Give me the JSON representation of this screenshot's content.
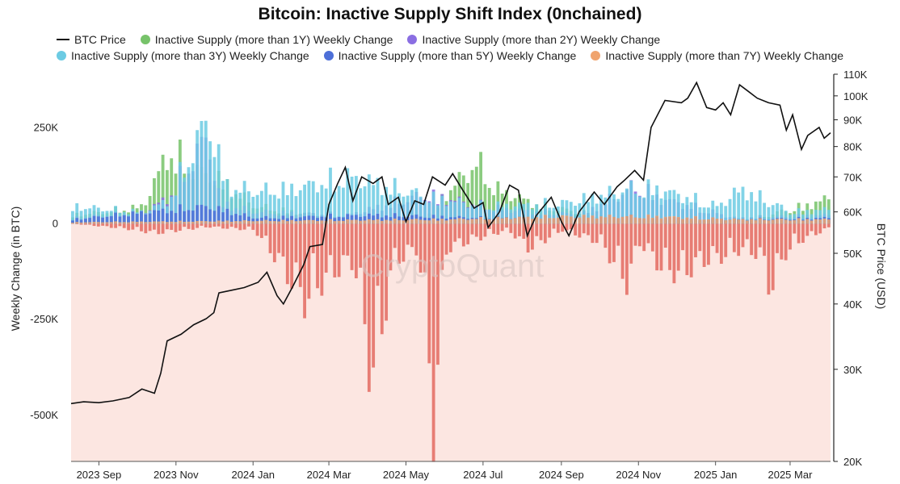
{
  "chart_data": {
    "type": "bar",
    "title": "Bitcoin: Inactive Supply Shift Index (0nchained)",
    "watermark": "CryptoQuant",
    "ylabel_left": "Weekly Change (in BTC)",
    "ylabel_right": "BTC Price (USD)",
    "ylim_left": [
      -620000,
      390000
    ],
    "ylim_right": [
      20000,
      110000
    ],
    "right_axis_scale": "log",
    "y_ticks_left": [
      {
        "value": 250000,
        "label": "250K"
      },
      {
        "value": 0,
        "label": "0"
      },
      {
        "value": -250000,
        "label": "-250K"
      },
      {
        "value": -500000,
        "label": "-500K"
      }
    ],
    "y_ticks_right": [
      {
        "value": 110000,
        "label": "110K"
      },
      {
        "value": 100000,
        "label": "100K"
      },
      {
        "value": 90000,
        "label": "90K"
      },
      {
        "value": 80000,
        "label": "80K"
      },
      {
        "value": 70000,
        "label": "70K"
      },
      {
        "value": 60000,
        "label": "60K"
      },
      {
        "value": 50000,
        "label": "50K"
      },
      {
        "value": 40000,
        "label": "40K"
      },
      {
        "value": 30000,
        "label": "30K"
      },
      {
        "value": 20000,
        "label": "20K"
      }
    ],
    "x_range": [
      "2023-08-10",
      "2025-04-02"
    ],
    "x_ticks": [
      {
        "date": "2023-09-01",
        "label": "2023 Sep"
      },
      {
        "date": "2023-11-01",
        "label": "2023 Nov"
      },
      {
        "date": "2024-01-01",
        "label": "2024 Jan"
      },
      {
        "date": "2024-03-01",
        "label": "2024 Mar"
      },
      {
        "date": "2024-05-01",
        "label": "2024 May"
      },
      {
        "date": "2024-07-01",
        "label": "2024 Jul"
      },
      {
        "date": "2024-09-01",
        "label": "2024 Sep"
      },
      {
        "date": "2024-11-01",
        "label": "2024 Nov"
      },
      {
        "date": "2025-01-01",
        "label": "2025 Jan"
      },
      {
        "date": "2025-03-01",
        "label": "2025 Mar"
      }
    ],
    "negative_region_color": "#fce6e1",
    "negative_bar_color": "#e05a4f",
    "series": [
      {
        "name": "BTC Price",
        "type": "line",
        "axis": "right",
        "color": "#111111",
        "points": [
          [
            "2023-08-10",
            25800
          ],
          [
            "2023-08-20",
            26000
          ],
          [
            "2023-09-01",
            25900
          ],
          [
            "2023-09-12",
            26100
          ],
          [
            "2023-09-25",
            26500
          ],
          [
            "2023-10-05",
            27500
          ],
          [
            "2023-10-15",
            27000
          ],
          [
            "2023-10-20",
            29500
          ],
          [
            "2023-10-25",
            34000
          ],
          [
            "2023-11-05",
            35000
          ],
          [
            "2023-11-15",
            36500
          ],
          [
            "2023-11-25",
            37500
          ],
          [
            "2023-12-01",
            38500
          ],
          [
            "2023-12-05",
            42000
          ],
          [
            "2023-12-15",
            42500
          ],
          [
            "2023-12-25",
            43000
          ],
          [
            "2024-01-05",
            44000
          ],
          [
            "2024-01-12",
            46000
          ],
          [
            "2024-01-20",
            41500
          ],
          [
            "2024-01-25",
            40000
          ],
          [
            "2024-02-01",
            43000
          ],
          [
            "2024-02-10",
            47500
          ],
          [
            "2024-02-15",
            51500
          ],
          [
            "2024-02-25",
            52000
          ],
          [
            "2024-03-01",
            62000
          ],
          [
            "2024-03-08",
            68000
          ],
          [
            "2024-03-14",
            73000
          ],
          [
            "2024-03-20",
            63000
          ],
          [
            "2024-03-27",
            70000
          ],
          [
            "2024-04-05",
            68000
          ],
          [
            "2024-04-12",
            70000
          ],
          [
            "2024-04-17",
            62000
          ],
          [
            "2024-04-25",
            64000
          ],
          [
            "2024-05-01",
            57500
          ],
          [
            "2024-05-08",
            63000
          ],
          [
            "2024-05-15",
            62000
          ],
          [
            "2024-05-22",
            70000
          ],
          [
            "2024-06-01",
            67500
          ],
          [
            "2024-06-07",
            71000
          ],
          [
            "2024-06-15",
            66000
          ],
          [
            "2024-06-24",
            61000
          ],
          [
            "2024-07-01",
            62500
          ],
          [
            "2024-07-05",
            56000
          ],
          [
            "2024-07-14",
            60000
          ],
          [
            "2024-07-22",
            67500
          ],
          [
            "2024-07-29",
            66000
          ],
          [
            "2024-08-05",
            54000
          ],
          [
            "2024-08-12",
            59000
          ],
          [
            "2024-08-24",
            64000
          ],
          [
            "2024-09-01",
            57500
          ],
          [
            "2024-09-07",
            54000
          ],
          [
            "2024-09-15",
            60000
          ],
          [
            "2024-09-27",
            65500
          ],
          [
            "2024-10-05",
            62000
          ],
          [
            "2024-10-15",
            67000
          ],
          [
            "2024-10-21",
            69000
          ],
          [
            "2024-10-29",
            72000
          ],
          [
            "2024-11-05",
            69000
          ],
          [
            "2024-11-11",
            87000
          ],
          [
            "2024-11-22",
            98000
          ],
          [
            "2024-12-05",
            97000
          ],
          [
            "2024-12-10",
            99000
          ],
          [
            "2024-12-17",
            106000
          ],
          [
            "2024-12-25",
            95000
          ],
          [
            "2025-01-01",
            94000
          ],
          [
            "2025-01-07",
            97000
          ],
          [
            "2025-01-13",
            92000
          ],
          [
            "2025-01-20",
            105000
          ],
          [
            "2025-01-27",
            102000
          ],
          [
            "2025-02-03",
            99000
          ],
          [
            "2025-02-12",
            97000
          ],
          [
            "2025-02-21",
            96000
          ],
          [
            "2025-02-26",
            86000
          ],
          [
            "2025-03-03",
            92000
          ],
          [
            "2025-03-10",
            79000
          ],
          [
            "2025-03-15",
            84000
          ],
          [
            "2025-03-24",
            87000
          ],
          [
            "2025-03-28",
            83000
          ],
          [
            "2025-04-02",
            85000
          ]
        ]
      },
      {
        "name": "Inactive Supply (more than 1Y) Weekly Change",
        "color": "#77c36a",
        "axis": "left",
        "points": [
          [
            "2023-08-10",
            30000
          ],
          [
            "2023-09-05",
            40000
          ],
          [
            "2023-10-05",
            60000
          ],
          [
            "2023-10-25",
            250000
          ],
          [
            "2023-11-15",
            180000
          ],
          [
            "2023-12-01",
            160000
          ],
          [
            "2024-01-01",
            60000
          ],
          [
            "2024-02-01",
            40000
          ],
          [
            "2024-03-15",
            20000
          ],
          [
            "2024-05-15",
            30000
          ],
          [
            "2024-06-25",
            210000
          ],
          [
            "2024-07-10",
            120000
          ],
          [
            "2024-08-15",
            60000
          ],
          [
            "2024-10-15",
            20000
          ],
          [
            "2024-12-15",
            10000
          ],
          [
            "2025-02-01",
            20000
          ],
          [
            "2025-03-10",
            60000
          ],
          [
            "2025-04-02",
            90000
          ]
        ]
      },
      {
        "name": "Inactive Supply (more than 2Y) Weekly Change",
        "color": "#8a6ee2",
        "axis": "left",
        "points": [
          [
            "2023-08-10",
            20000
          ],
          [
            "2023-09-05",
            30000
          ],
          [
            "2023-10-05",
            40000
          ],
          [
            "2023-10-25",
            90000
          ],
          [
            "2023-11-25",
            300000
          ],
          [
            "2023-12-05",
            70000
          ],
          [
            "2024-01-01",
            40000
          ],
          [
            "2024-03-15",
            30000
          ],
          [
            "2024-05-15",
            100000
          ],
          [
            "2024-07-15",
            50000
          ],
          [
            "2024-09-15",
            30000
          ],
          [
            "2024-10-29",
            130000
          ],
          [
            "2024-11-15",
            90000
          ],
          [
            "2025-01-15",
            20000
          ],
          [
            "2025-04-02",
            30000
          ]
        ]
      },
      {
        "name": "Inactive Supply (more than 3Y) Weekly Change",
        "color": "#6ccbe3",
        "axis": "left",
        "points": [
          [
            "2023-08-10",
            60000
          ],
          [
            "2023-09-05",
            50000
          ],
          [
            "2023-10-05",
            40000
          ],
          [
            "2023-10-25",
            80000
          ],
          [
            "2023-11-25",
            360000
          ],
          [
            "2023-12-10",
            130000
          ],
          [
            "2024-01-01",
            110000
          ],
          [
            "2024-02-01",
            120000
          ],
          [
            "2024-03-15",
            160000
          ],
          [
            "2024-04-05",
            140000
          ],
          [
            "2024-05-01",
            110000
          ],
          [
            "2024-05-20",
            90000
          ],
          [
            "2024-07-01",
            60000
          ],
          [
            "2024-09-01",
            70000
          ],
          [
            "2024-10-25",
            120000
          ],
          [
            "2024-11-15",
            120000
          ],
          [
            "2025-01-01",
            60000
          ],
          [
            "2025-01-20",
            120000
          ],
          [
            "2025-03-01",
            40000
          ],
          [
            "2025-04-02",
            50000
          ]
        ]
      },
      {
        "name": "Inactive Supply (more than 5Y) Weekly Change",
        "color": "#4d6fd8",
        "axis": "left",
        "points": [
          [
            "2023-08-10",
            15000
          ],
          [
            "2023-11-25",
            60000
          ],
          [
            "2024-01-01",
            20000
          ],
          [
            "2024-04-05",
            30000
          ],
          [
            "2024-07-01",
            20000
          ],
          [
            "2024-10-25",
            25000
          ],
          [
            "2025-01-15",
            15000
          ],
          [
            "2025-04-02",
            20000
          ]
        ]
      },
      {
        "name": "Inactive Supply (more than 7Y) Weekly Change",
        "color": "#f0a46e",
        "axis": "left",
        "points": [
          [
            "2023-08-10",
            5000
          ],
          [
            "2024-01-01",
            10000
          ],
          [
            "2024-06-01",
            15000
          ],
          [
            "2024-09-01",
            25000
          ],
          [
            "2024-11-15",
            25000
          ],
          [
            "2025-01-15",
            15000
          ],
          [
            "2025-04-02",
            15000
          ]
        ]
      },
      {
        "name": "negative",
        "color": "#e05a4f",
        "axis": "left",
        "points": [
          [
            "2023-08-10",
            0
          ],
          [
            "2023-09-20",
            -15000
          ],
          [
            "2023-10-15",
            -30000
          ],
          [
            "2023-11-25",
            -10000
          ],
          [
            "2024-01-01",
            -20000
          ],
          [
            "2024-01-20",
            -120000
          ],
          [
            "2024-02-10",
            -250000
          ],
          [
            "2024-02-20",
            -200000
          ],
          [
            "2024-03-05",
            -150000
          ],
          [
            "2024-03-20",
            -120000
          ],
          [
            "2024-04-01",
            -450000
          ],
          [
            "2024-04-05",
            -470000
          ],
          [
            "2024-04-20",
            -120000
          ],
          [
            "2024-05-10",
            -80000
          ],
          [
            "2024-05-22",
            -640000
          ],
          [
            "2024-06-01",
            -80000
          ],
          [
            "2024-07-01",
            -40000
          ],
          [
            "2024-07-20",
            -20000
          ],
          [
            "2024-08-05",
            -80000
          ],
          [
            "2024-09-01",
            -20000
          ],
          [
            "2024-10-01",
            -60000
          ],
          [
            "2024-10-22",
            -190000
          ],
          [
            "2024-11-01",
            -60000
          ],
          [
            "2024-11-20",
            -150000
          ],
          [
            "2024-12-05",
            -160000
          ],
          [
            "2024-12-20",
            -120000
          ],
          [
            "2025-01-10",
            -100000
          ],
          [
            "2025-01-20",
            -80000
          ],
          [
            "2025-02-05",
            -100000
          ],
          [
            "2025-02-12",
            -210000
          ],
          [
            "2025-02-25",
            -90000
          ],
          [
            "2025-03-10",
            -50000
          ],
          [
            "2025-04-02",
            -10000
          ]
        ]
      }
    ]
  }
}
